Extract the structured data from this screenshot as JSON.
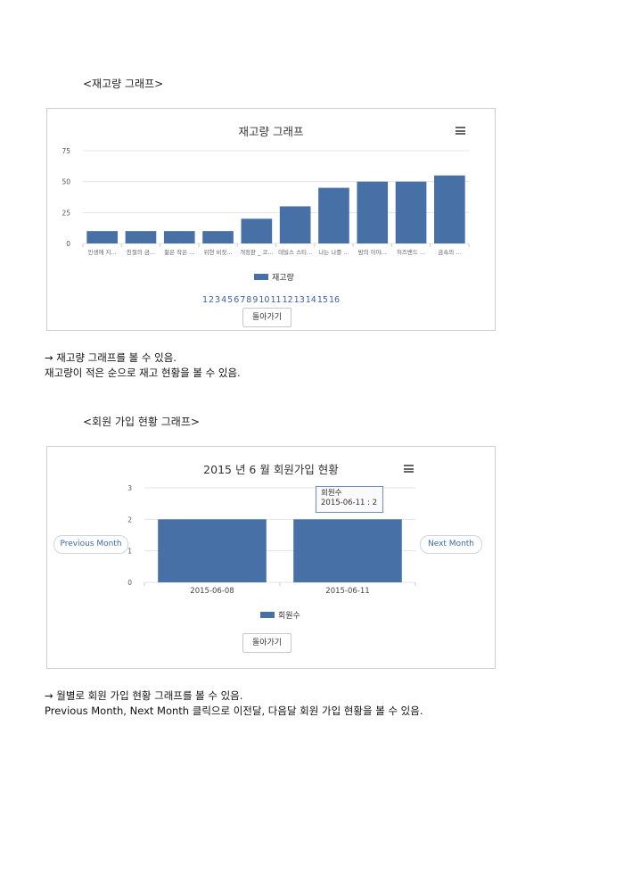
{
  "section1": {
    "heading": "<재고량 그래프>",
    "chart_title": "재고량 그래프",
    "legend_label": "재고량",
    "pages": [
      "1",
      "2",
      "3",
      "4",
      "5",
      "6",
      "7",
      "8",
      "9",
      "10",
      "11",
      "12",
      "13",
      "14",
      "15",
      "16"
    ],
    "back_label": "돌아가기",
    "desc_line1": "→ 재고량 그래프를 볼 수 있음.",
    "desc_line2": "재고량이 적은 순으로 재고 현황을 볼 수 있음."
  },
  "section2": {
    "heading": "<회원 가입 현황 그래프>",
    "chart_title": "2015 년 6 월 회원가입 현황",
    "legend_label": "회원수",
    "prev_label": "Previous Month",
    "next_label": "Next Month",
    "tooltip_title": "회원수",
    "tooltip_value": "2015-06-11 : 2",
    "back_label": "돌아가기",
    "desc_line1": "→ 월별로 회원 가입 현황 그래프를 볼 수 있음.",
    "desc_line2": "Previous Month, Next Month 클릭으로 이전달, 다음달 회원 가입 현황을 볼 수 있음."
  },
  "colors": {
    "bar": "#4770a6",
    "grid": "#e4e4e4",
    "link": "#3b5ea8"
  },
  "icons": {
    "chart_menu": "hamburger-menu-icon"
  },
  "chart_data": [
    {
      "type": "bar",
      "title": "재고량 그래프",
      "categories": [
        "인생에 지...",
        "친절의 금...",
        "젊은 작은 ...",
        "위현 비잣...",
        "개정판 _ 코...",
        "데빌스 스티...",
        "나는 나를 ...",
        "밤의 이야...",
        "허즈밴드 ...",
        "금속의 ..."
      ],
      "series": [
        {
          "name": "재고량",
          "values": [
            10,
            10,
            10,
            10,
            20,
            30,
            45,
            50,
            50,
            55
          ]
        }
      ],
      "yticks": [
        0,
        25,
        50,
        75
      ],
      "ylim": [
        0,
        75
      ],
      "legend": "bottom"
    },
    {
      "type": "bar",
      "title": "2015 년 6 월 회원가입 현황",
      "categories": [
        "2015-06-08",
        "2015-06-11"
      ],
      "series": [
        {
          "name": "회원수",
          "values": [
            2,
            2
          ]
        }
      ],
      "yticks": [
        0,
        1,
        2,
        3
      ],
      "ylim": [
        0,
        3
      ],
      "legend": "bottom"
    }
  ]
}
